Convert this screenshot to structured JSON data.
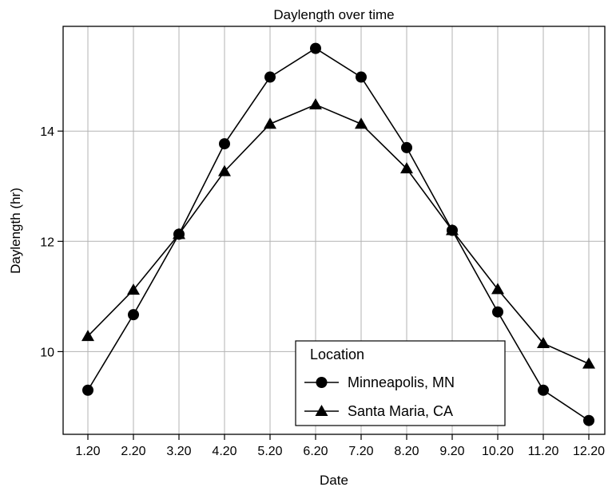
{
  "chart_data": {
    "type": "line",
    "title": "Daylength over time",
    "xlabel": "Date",
    "ylabel": "Daylength (hr)",
    "categories": [
      "1.20",
      "2.20",
      "3.20",
      "4.20",
      "5.20",
      "6.20",
      "7.20",
      "8.20",
      "9.20",
      "10.20",
      "11.20",
      "12.20"
    ],
    "ylim": [
      8.5,
      15.9
    ],
    "yticks": [
      10,
      12,
      14
    ],
    "grid": true,
    "legend": {
      "title": "Location",
      "placement": "bottom-center"
    },
    "series": [
      {
        "name": "Minneapolis, MN",
        "marker": "circle",
        "values": [
          9.3,
          10.67,
          12.13,
          13.77,
          14.98,
          15.5,
          14.98,
          13.7,
          12.2,
          10.72,
          9.3,
          8.75
        ]
      },
      {
        "name": "Santa Maria, CA",
        "marker": "triangle",
        "values": [
          10.28,
          11.12,
          12.13,
          13.27,
          14.13,
          14.48,
          14.13,
          13.32,
          12.2,
          11.13,
          10.15,
          9.78
        ]
      }
    ],
    "colors": {
      "line": "#000000",
      "grid": "#b3b3b3",
      "frame": "#000000",
      "background": "#ffffff"
    }
  }
}
